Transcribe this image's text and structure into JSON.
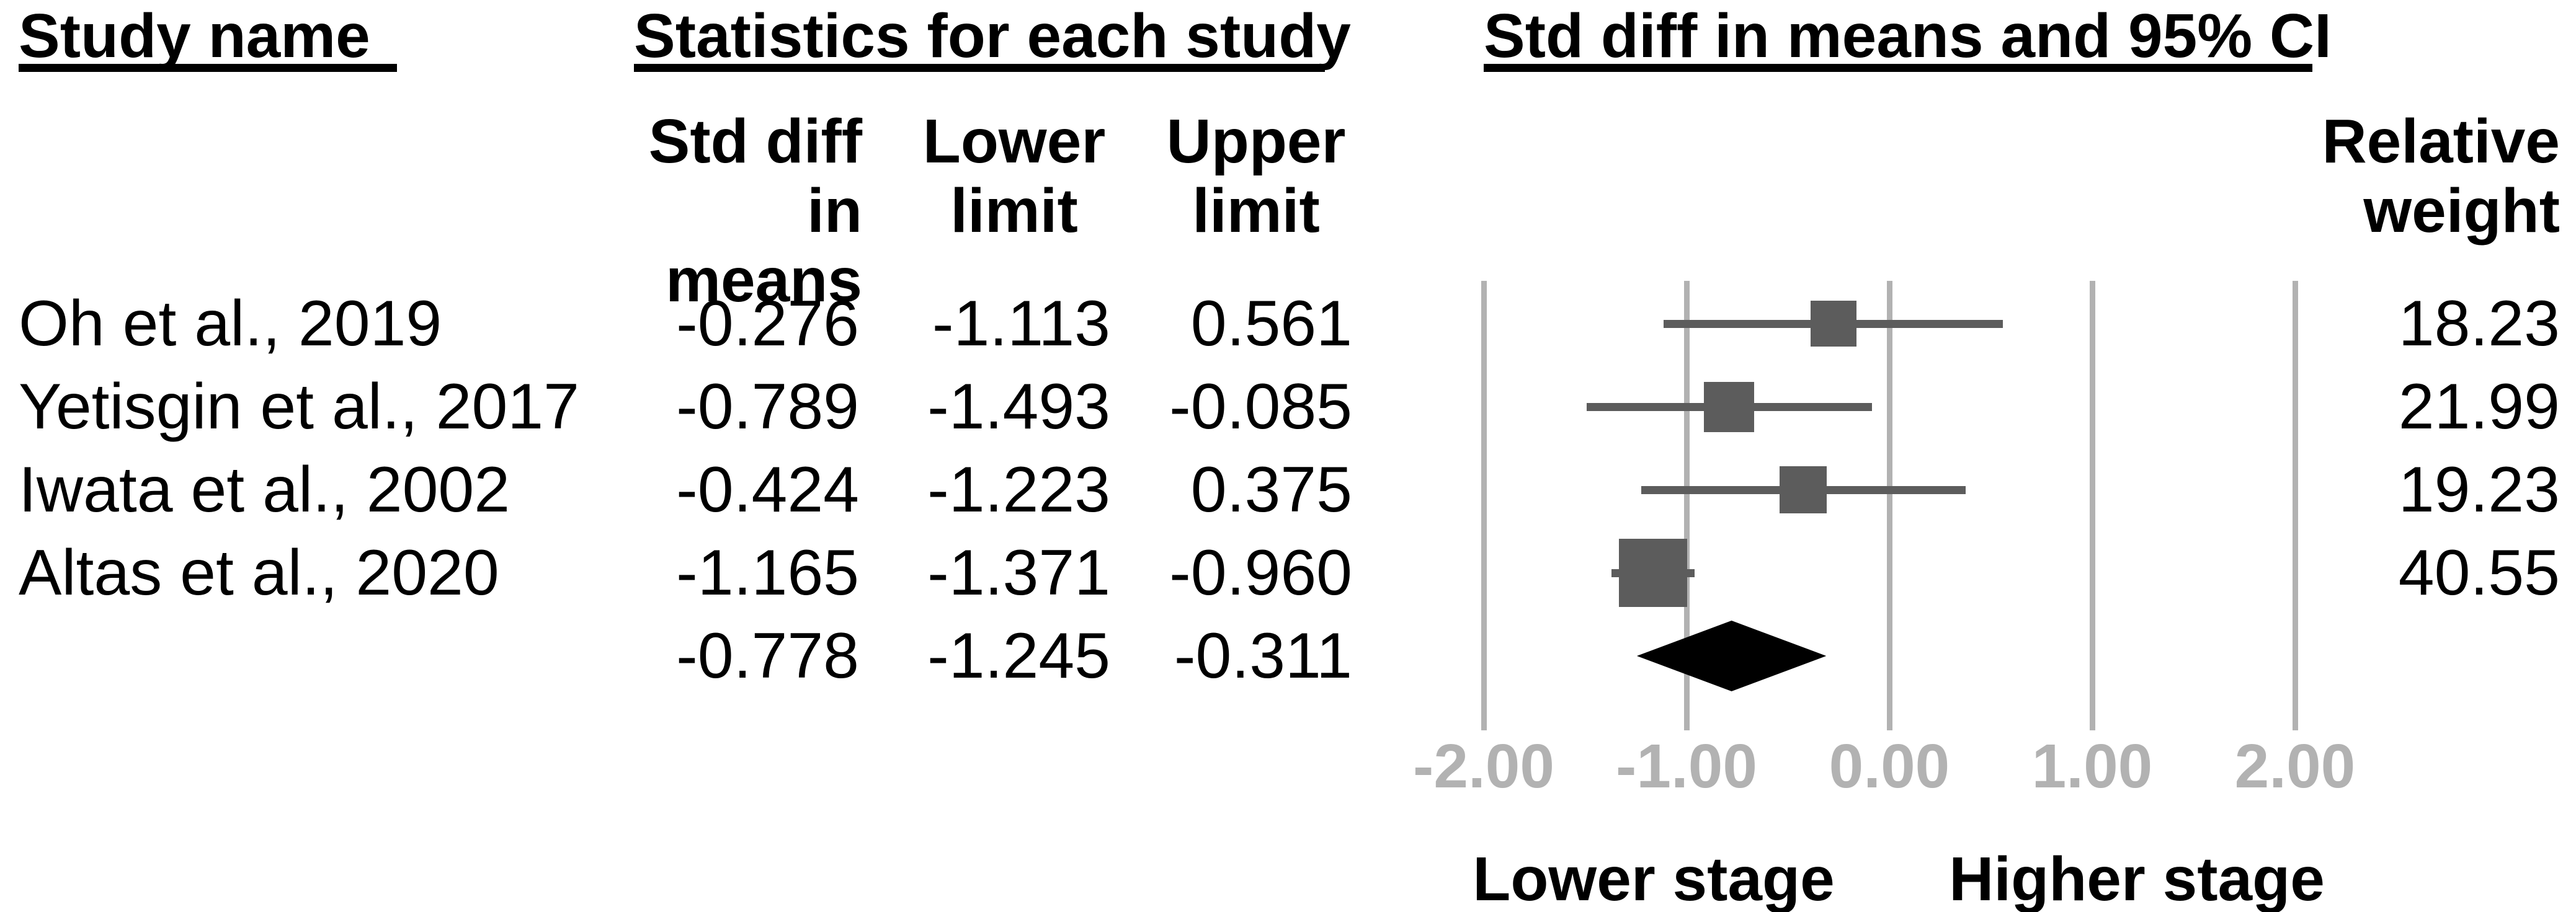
{
  "table": {
    "study_col_header": "Study name",
    "stats_col_header": "Statistics for each study",
    "plot_col_header": "Std diff in means and 95% CI",
    "subheaders": {
      "std_diff": "Std diff\nin means",
      "lower": "Lower\nlimit",
      "upper": "Upper\nlimit",
      "weight": "Relative\nweight"
    }
  },
  "chart_data": {
    "type": "forest",
    "x_axis": {
      "min": -2,
      "max": 2,
      "tick_labels": [
        "-2.00",
        "-1.00",
        "0.00",
        "1.00",
        "2.00"
      ],
      "grid": true
    },
    "studies": [
      {
        "name": "Oh et al., 2019",
        "std_diff": "-0.276",
        "lower": "-1.113",
        "upper": "0.561",
        "weight": "18.23"
      },
      {
        "name": "Yetisgin et al., 2017",
        "std_diff": "-0.789",
        "lower": "-1.493",
        "upper": "-0.085",
        "weight": "21.99"
      },
      {
        "name": "Iwata et al., 2002",
        "std_diff": "-0.424",
        "lower": "-1.223",
        "upper": "0.375",
        "weight": "19.23"
      },
      {
        "name": "Altas et al., 2020",
        "std_diff": "-1.165",
        "lower": "-1.371",
        "upper": "-0.960",
        "weight": "40.55"
      }
    ],
    "overall": {
      "std_diff": "-0.778",
      "lower": "-1.245",
      "upper": "-0.311"
    },
    "footer_labels": {
      "left": "Lower stage",
      "right": "Higher stage"
    },
    "colors": {
      "marker": "#5c5c5c",
      "ci_line": "#5c5c5c",
      "diamond": "#000000",
      "gridline": "#b2b2b2",
      "axis_text": "#b2b2b2",
      "text": "#000000"
    }
  }
}
